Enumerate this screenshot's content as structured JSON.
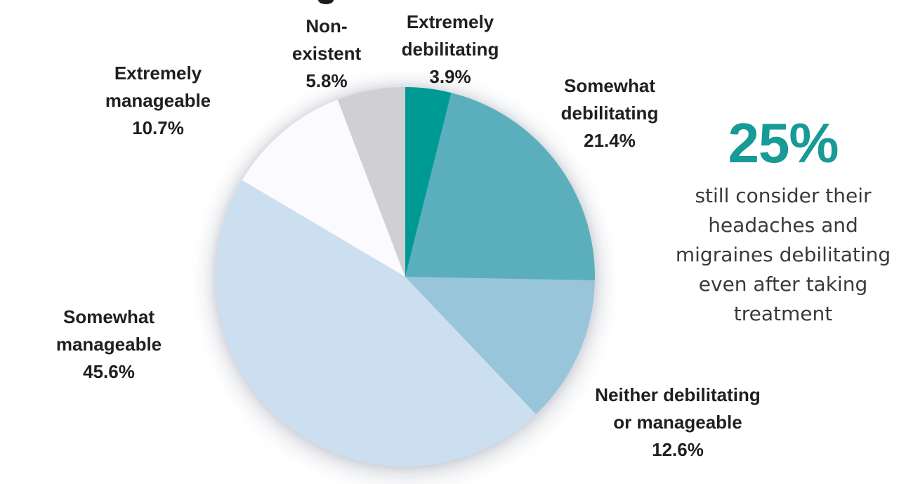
{
  "chart_data": {
    "type": "pie",
    "title": "",
    "direction": "clockwise",
    "start_angle_deg": 0,
    "center_note": "pie occupies left-center of image, labels around it",
    "slices": [
      {
        "label": "Extremely debilitating",
        "label_lines": [
          "Extremely",
          "debilitating"
        ],
        "value": 3.9,
        "pct_label": "3.9%",
        "color": "#009a94"
      },
      {
        "label": "Somewhat debilitating",
        "label_lines": [
          "Somewhat",
          "debilitating"
        ],
        "value": 21.4,
        "pct_label": "21.4%",
        "color": "#5bafbc"
      },
      {
        "label": "Neither debilitating or manageable",
        "label_lines": [
          "Neither debilitating",
          "or manageable"
        ],
        "value": 12.6,
        "pct_label": "12.6%",
        "color": "#98c5da"
      },
      {
        "label": "Somewhat manageable",
        "label_lines": [
          "Somewhat",
          "manageable"
        ],
        "value": 45.6,
        "pct_label": "45.6%",
        "color": "#cbdff0"
      },
      {
        "label": "Extremely manageable",
        "label_lines": [
          "Extremely",
          "manageable"
        ],
        "value": 10.7,
        "pct_label": "10.7%",
        "color": "#fafaff"
      },
      {
        "label": "Non-existent",
        "label_lines": [
          "Non-",
          "existent"
        ],
        "value": 5.8,
        "pct_label": "5.8%",
        "color": "#cfcfd4"
      }
    ],
    "label_text_color": "#1f1f21",
    "legend": "none"
  },
  "callout": {
    "stat": "25%",
    "stat_color": "#189a96",
    "text": "still consider their headaches and migraines debilitating even after taking treatment",
    "text_lines": [
      "still consider their",
      "headaches and",
      "migraines debilitating",
      "even after taking",
      "treatment"
    ],
    "text_color": "#3a3a3c"
  }
}
